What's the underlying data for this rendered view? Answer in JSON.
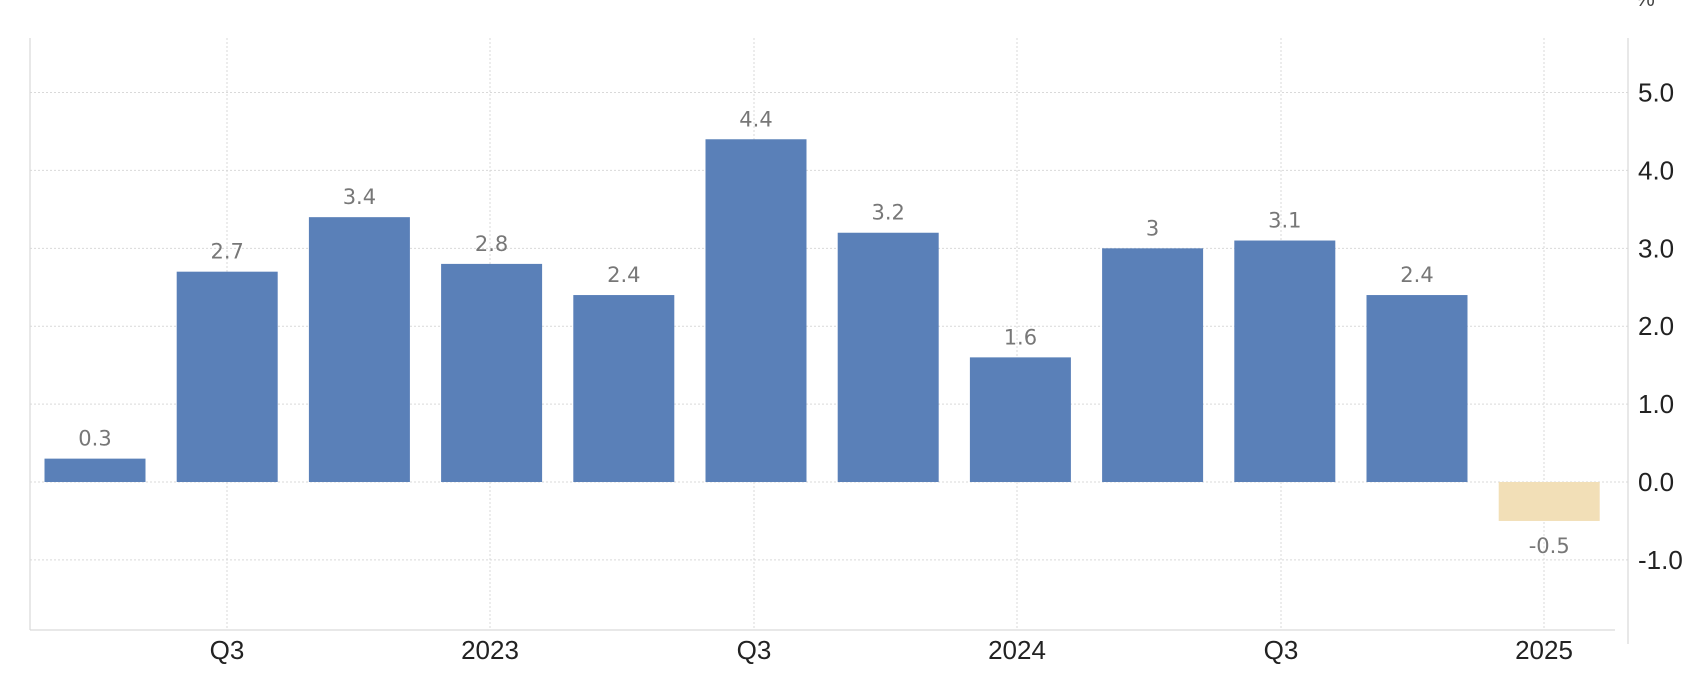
{
  "chart_data": {
    "type": "bar",
    "title": "",
    "xlabel": "",
    "ylabel": "",
    "unit": "%",
    "ylim": [
      -1.9,
      5.7
    ],
    "yticks": [
      -1.0,
      0.0,
      1.0,
      2.0,
      3.0,
      4.0,
      5.0
    ],
    "ytick_labels": [
      "-1.0",
      "0.0",
      "1.0",
      "2.0",
      "3.0",
      "4.0",
      "5.0"
    ],
    "x_tick_labels": [
      "Q3",
      "2023",
      "Q3",
      "2024",
      "Q3",
      "2025"
    ],
    "grid": true,
    "legend": "none",
    "colors": {
      "bar": "#5a80b8",
      "forecast": "#f2dfb7"
    },
    "values": [
      0.3,
      2.7,
      3.4,
      2.8,
      2.4,
      4.4,
      3.2,
      1.6,
      3,
      3.1,
      2.4,
      -0.5
    ],
    "data_labels": [
      "0.3",
      "2.7",
      "3.4",
      "2.8",
      "2.4",
      "4.4",
      "3.2",
      "1.6",
      "3",
      "3.1",
      "2.4",
      "-0.5"
    ],
    "forecast_flags": [
      false,
      false,
      false,
      false,
      false,
      false,
      false,
      false,
      false,
      false,
      false,
      true
    ]
  }
}
